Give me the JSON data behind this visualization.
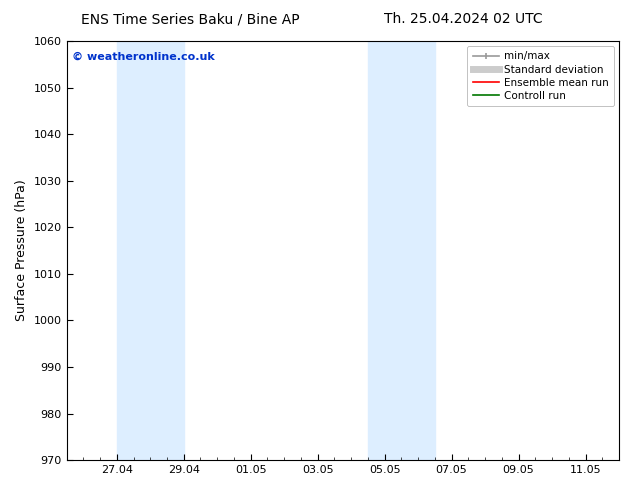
{
  "title_left": "ENS Time Series Baku / Bine AP",
  "title_right": "Th. 25.04.2024 02 UTC",
  "ylabel": "Surface Pressure (hPa)",
  "ylim": [
    970,
    1060
  ],
  "yticks": [
    970,
    980,
    990,
    1000,
    1010,
    1020,
    1030,
    1040,
    1050,
    1060
  ],
  "xlim": [
    0,
    16.5
  ],
  "xtick_labels": [
    "27.04",
    "29.04",
    "01.05",
    "03.05",
    "05.05",
    "07.05",
    "09.05",
    "11.05"
  ],
  "xtick_positions": [
    1.5,
    3.5,
    5.5,
    7.5,
    9.5,
    11.5,
    13.5,
    15.5
  ],
  "watermark": "© weatheronline.co.uk",
  "watermark_color": "#0033cc",
  "bg_color": "#ffffff",
  "plot_bg_color": "#ffffff",
  "shaded_bands": [
    {
      "x_start": 1.5,
      "x_end": 3.5,
      "color": "#ddeeff"
    },
    {
      "x_start": 9.0,
      "x_end": 11.0,
      "color": "#ddeeff"
    }
  ],
  "legend_entries": [
    {
      "label": "min/max",
      "color": "#999999",
      "linewidth": 1.2,
      "linestyle": "-",
      "type": "minmax"
    },
    {
      "label": "Standard deviation",
      "color": "#cccccc",
      "linewidth": 5,
      "linestyle": "-",
      "type": "band"
    },
    {
      "label": "Ensemble mean run",
      "color": "#ff0000",
      "linewidth": 1.2,
      "linestyle": "-",
      "type": "line"
    },
    {
      "label": "Controll run",
      "color": "#007700",
      "linewidth": 1.2,
      "linestyle": "-",
      "type": "line"
    }
  ],
  "title_fontsize": 10,
  "tick_fontsize": 8,
  "label_fontsize": 9,
  "watermark_fontsize": 8,
  "legend_fontsize": 7.5
}
